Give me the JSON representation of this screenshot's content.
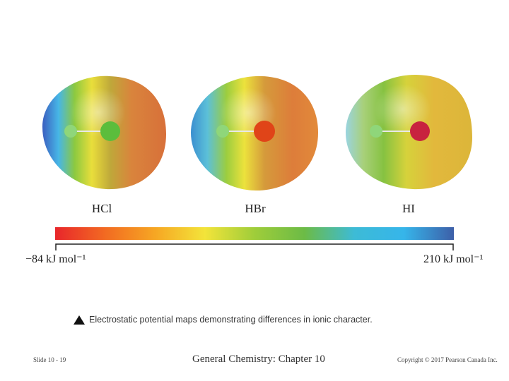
{
  "molecules": [
    {
      "label": "HCl"
    },
    {
      "label": "HBr"
    },
    {
      "label": "HI"
    }
  ],
  "scale": {
    "min_label": "−84 kJ mol⁻¹",
    "max_label": "210 kJ mol⁻¹",
    "gradient_colors": [
      "#e8262b",
      "#f26a22",
      "#f6a623",
      "#f3e43a",
      "#9fcd3a",
      "#6cbb46",
      "#3dbbd6",
      "#36b5ea",
      "#3d5fa8"
    ]
  },
  "caption": {
    "text": "Electrostatic potential maps demonstrating differences in ionic character."
  },
  "footer": {
    "slide": "Slide 10 - 19",
    "title": "General Chemistry: Chapter 10",
    "copyright": "Copyright © 2017 Pearson Canada Inc."
  },
  "colors": {
    "hcl_heavy_atom": "#5bbd3c",
    "hbr_heavy_atom": "#e04418",
    "hi_heavy_atom": "#c8223f",
    "hydrogen": "#8fd67a"
  }
}
